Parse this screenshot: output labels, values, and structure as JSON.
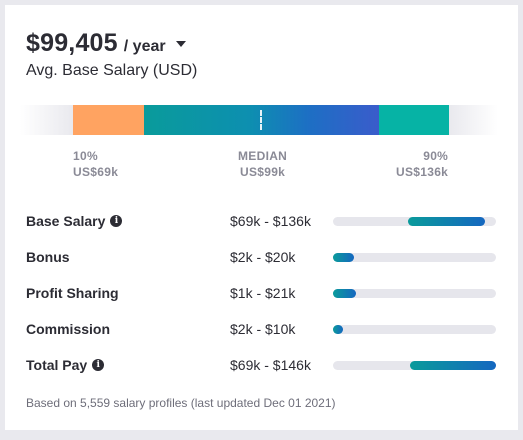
{
  "summary": {
    "amount": "$99,405",
    "period": "/ year",
    "caption": "Avg. Base Salary (USD)"
  },
  "range": {
    "p10_label": "10%",
    "p10_value": "US$69k",
    "median_label": "MEDIAN",
    "median_value": "US$99k",
    "p90_label": "90%",
    "p90_value": "US$136k"
  },
  "rows": [
    {
      "label": "Base Salary",
      "range": "$69k - $136k",
      "has_info": true,
      "fill_start": 0.46,
      "fill_end": 0.93
    },
    {
      "label": "Bonus",
      "range": "$2k - $20k",
      "has_info": false,
      "fill_start": 0.0,
      "fill_end": 0.13
    },
    {
      "label": "Profit Sharing",
      "range": "$1k - $21k",
      "has_info": false,
      "fill_start": 0.0,
      "fill_end": 0.14
    },
    {
      "label": "Commission",
      "range": "$2k - $10k",
      "has_info": false,
      "fill_start": 0.0,
      "fill_end": 0.06
    },
    {
      "label": "Total Pay",
      "range": "$69k - $146k",
      "has_info": true,
      "fill_start": 0.47,
      "fill_end": 1.0
    }
  ],
  "footnote": "Based on 5,559 salary profiles (last updated Dec 01 2021)",
  "colors": {
    "low": "#ffa361",
    "median_start": "#0a9b9b",
    "median_end": "#3a5ccb",
    "high": "#06b3a5",
    "bar_fill_start": "#0a9b9b",
    "bar_fill_end": "#1567c0",
    "track": "#e6e6ec"
  },
  "icons": {
    "period_dropdown": "chevron-down-icon",
    "info": "info-icon"
  }
}
